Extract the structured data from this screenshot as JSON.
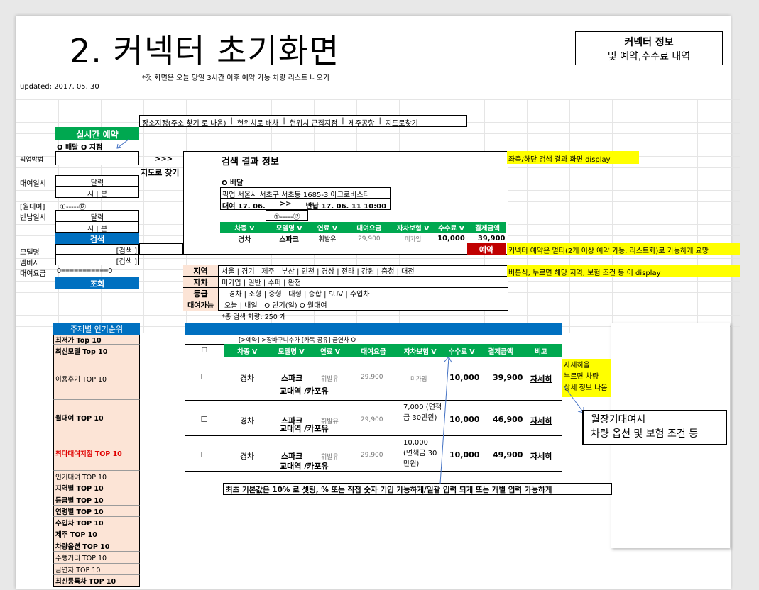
{
  "title": "2. 커넥터 초기화면",
  "info_box": {
    "line1": "커넥터 정보",
    "line2": "및 예약,수수료 내역"
  },
  "note_top": "*첫 화면은  오늘 당일 3시간 이후 예약 가능 차량 리스트 나오기",
  "updated": "updated: 2017. 05. 30",
  "nav": [
    "장소지정(주소 찾기 로 나옴)",
    "현위치로 배차",
    "현위치 근접지점",
    "제주공항",
    "지도로찾기"
  ],
  "nav_sep": "|",
  "realtime_label": "실시간 예약",
  "delivery_radio": "O  배달  O 지점",
  "arrow_map": ">>>",
  "map_find": "지도로 찾기",
  "left_labels": {
    "pickup": "픽업방법",
    "rent_dt": "대여일시",
    "monthly": "[월대여]",
    "return_dt": "반납일시",
    "model": "모델명",
    "member": "멤버사",
    "fee": "대여요금"
  },
  "calendar": "달력",
  "time": "시  |  분",
  "slider_monthly": "①-----⑫",
  "search_btn": "검색",
  "model_search": "[검색 ]",
  "member_search": "[검색 ]",
  "fee_slider": "O===========O",
  "query_btn": "조회",
  "result": {
    "title": "검색 결과 정보",
    "delivery": "O  배달",
    "pickup": "픽업  서울시 서초구 서초동 1685-3 아크로비스타",
    "rent": "대여 17. 06.",
    "arrow": ">>",
    "return": "반납 17. 06. 11 10:00",
    "slider": "①-----⑫",
    "headers": [
      "차종 V",
      "모델명 V",
      "연료 V",
      "대여요금",
      "자차보험 V",
      "수수료  V",
      "결제금액"
    ],
    "row": [
      "경차",
      "스파크",
      "휘발유",
      "29,900",
      "미가입",
      "10,000",
      "39,900"
    ],
    "reserve": "예약"
  },
  "filters": [
    {
      "label": "지역",
      "values": "서울  |  경기  |  제주  |  부산  |  인천  |  경상  |  전라  |  강원  |  충청  |  대전"
    },
    {
      "label": "자차",
      "values": "미가입  |  일반  |  수퍼  |  완전"
    },
    {
      "label": "등급",
      "values": "경차  |  소형  |  중형  |  대형  |  승합  |  SUV  |  수입차"
    },
    {
      "label": "대여가능",
      "values": "오늘  |  내일  |  O  단기(일)  O 월대여"
    }
  ],
  "total": "*총 검색 차량: 250 개",
  "notes": {
    "right1": "좌측/하단 검색 결과 화면 display",
    "right2": "커넥터 예약은 멀티(2개 이상 예약 가능, 리스트화)로 가능하게 요망",
    "right3": "버튼식, 누르면 해당 지역, 보험 조건 등 이 display",
    "detail": "자세히을 누르면 차량 상세 정보 나옴",
    "callout1": "월장기대여시",
    "callout2": "차량 옵션 및 보험 조건 등",
    "bottom": "최초 기본값은 10% 로 셋팅,  % 또는 직접 숫자 기입 가능하게/일괄 입력 되게 또는 개별 입력 가능하게"
  },
  "ranking_title": "주제별 인기순위",
  "ranking": [
    "최저가 Top 10",
    "최신모델 Top 10",
    "이용후기 TOP 10",
    "월대여 TOP 10",
    "최다대여지점 TOP 10",
    "인기대여 TOP 10",
    "지역별 TOP 10",
    "등급별 TOP 10",
    "연령별 TOP 10",
    "수입차 TOP 10",
    "제주 TOP 10",
    "차량옵션 TOP 10",
    "주행거리 TOP 10",
    "금연차 TOP 10",
    "최신등록차 TOP 10"
  ],
  "list_actions": "[>예약]     >장바구니추가 [카톡 공유]       금연차 O",
  "list_headers": [
    "☐",
    "차종 V",
    "모델명 V",
    "연료 V",
    "대여요금",
    "자차보험 V",
    "수수료 V",
    "결제금액",
    "비고"
  ],
  "list_rows": [
    {
      "check": "☐",
      "type": "경차",
      "model": "스파크",
      "branch": "교대역 /카포유",
      "fuel": "휘발유",
      "fee": "29,900",
      "ins": "미가입",
      "comm": "10,000",
      "total": "39,900",
      "detail": "자세히"
    },
    {
      "check": "☐",
      "type": "경차",
      "model": "스파크",
      "branch": "교대역 /카포유",
      "fuel": "휘발유",
      "fee": "29,900",
      "ins": "7,000 (면책금 30만원)",
      "comm": "10,000",
      "total": "46,900",
      "detail": "자세히"
    },
    {
      "check": "☐",
      "type": "경차",
      "model": "스파크",
      "branch": "교대역 /카포유",
      "fuel": "휘발유",
      "fee": "29,900",
      "ins": "10,000 (면책금 30만원)",
      "comm": "10,000",
      "total": "49,900",
      "detail": "자세히"
    }
  ]
}
